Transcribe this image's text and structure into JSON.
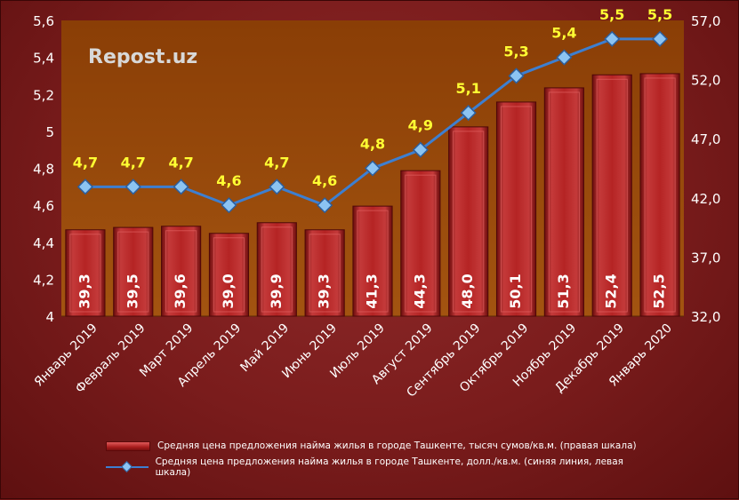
{
  "chart_data": {
    "type": "bar",
    "watermark": "Repost.uz",
    "categories": [
      "Январь 2019",
      "Февраль 2019",
      "Март 2019",
      "Апрель 2019",
      "Май 2019",
      "Июнь 2019",
      "Июль 2019",
      "Август 2019",
      "Сентябрь 2019",
      "Октябрь 2019",
      "Ноябрь 2019",
      "Декабрь 2019",
      "Январь 2020"
    ],
    "series": [
      {
        "name": "Средняя цена предложения найма жилья в городе Ташкенте, тысяч сумов/кв.м. (правая шкала)",
        "kind": "bar",
        "axis": "right",
        "values": [
          39.3,
          39.5,
          39.6,
          39.0,
          39.9,
          39.3,
          41.3,
          44.3,
          48.0,
          50.1,
          51.3,
          52.4,
          52.5
        ],
        "labels": [
          "39,3",
          "39,5",
          "39,6",
          "39,0",
          "39,9",
          "39,3",
          "41,3",
          "44,3",
          "48,0",
          "50,1",
          "51,3",
          "52,4",
          "52,5"
        ]
      },
      {
        "name": "Средняя цена предложения найма жилья в городе Ташкенте, долл./кв.м. (синяя линия, левая шкала)",
        "kind": "line",
        "axis": "left",
        "values": [
          4.7,
          4.7,
          4.7,
          4.6,
          4.7,
          4.6,
          4.8,
          4.9,
          5.1,
          5.3,
          5.4,
          5.5,
          5.5
        ],
        "labels": [
          "4,7",
          "4,7",
          "4,7",
          "4,6",
          "4,7",
          "4,6",
          "4,8",
          "4,9",
          "5,1",
          "5,3",
          "5,4",
          "5,5",
          "5,5"
        ]
      }
    ],
    "left_axis": {
      "min": 4,
      "max": 5.6,
      "ticks": [
        "4",
        "4,2",
        "4,4",
        "4,6",
        "4,8",
        "5",
        "5,2",
        "5,4",
        "5,6"
      ]
    },
    "right_axis": {
      "min": 32,
      "max": 57,
      "ticks": [
        "32,0",
        "37,0",
        "42,0",
        "47,0",
        "52,0",
        "57,0"
      ]
    },
    "legend_position": "bottom",
    "colors": {
      "plot_bg": "#9a4a08",
      "bar": "#b52424",
      "line": "#3d7fd1",
      "marker": "#8cc4f2",
      "line_label": "#ffff33",
      "axis_text": "#ffffff",
      "watermark": "#d8d8d8"
    }
  }
}
